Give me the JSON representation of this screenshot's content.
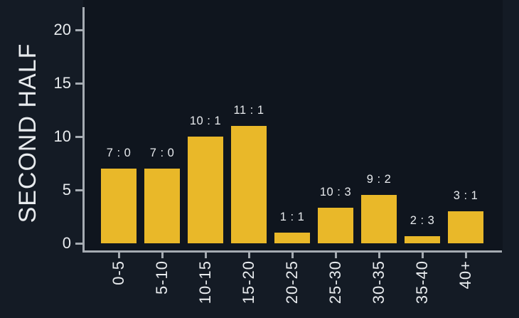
{
  "chart_data": {
    "type": "bar",
    "ylabel": "SECOND HALF",
    "categories": [
      "0-5",
      "5-10",
      "10-15",
      "15-20",
      "20-25",
      "25-30",
      "30-35",
      "35-40",
      "40+"
    ],
    "bar_labels": [
      "7 : 0",
      "7 : 0",
      "10 : 1",
      "11 : 1",
      "1 : 1",
      "10 : 3",
      "9 : 2",
      "2 : 3",
      "3 : 1"
    ],
    "values": [
      7,
      7,
      10,
      11,
      1,
      3.33,
      4.5,
      0.67,
      3
    ],
    "yticks": [
      0,
      5,
      10,
      15,
      20
    ],
    "ylim": [
      0,
      22
    ],
    "grid": false,
    "legend": "none",
    "colors": {
      "background": "#141b25",
      "plot_background": "#0f151e",
      "bar": "#e9b829",
      "axis": "#a5abb2",
      "text": "#e8ebee"
    }
  }
}
